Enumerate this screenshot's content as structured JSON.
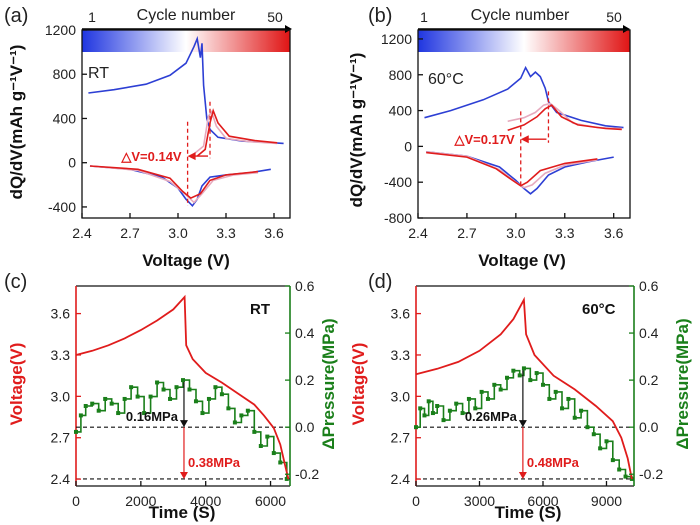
{
  "colors": {
    "red": "#e01c1c",
    "green": "#1a7f1a",
    "blue": "#2d3fd4",
    "dark": "#111111"
  },
  "chart_data": [
    {
      "panel": "(a)",
      "type": "line",
      "condition": "RT",
      "colorbar": {
        "label": "Cycle number",
        "min": "1",
        "max": "50"
      },
      "xlabel": "Voltage (V)",
      "ylabel": "dQ/dV(mAh g⁻¹V⁻¹)",
      "xlim": [
        2.4,
        3.7
      ],
      "ylim": [
        -500,
        1200
      ],
      "xticks": [
        "2.4",
        "2.7",
        "3.0",
        "3.3",
        "3.6"
      ],
      "yticks": [
        "-400",
        "0",
        "400",
        "800",
        "1200"
      ],
      "annotation": "△V=0.14V",
      "peaks": {
        "charge_cycle1_V": 3.06,
        "charge_cycle50_V": 3.2
      },
      "series": [
        {
          "cycle": 1,
          "charge": [
            [
              2.44,
              630
            ],
            [
              2.6,
              660
            ],
            [
              2.8,
              710
            ],
            [
              2.95,
              790
            ],
            [
              3.05,
              900
            ],
            [
              3.1,
              1050
            ],
            [
              3.12,
              1120
            ],
            [
              3.14,
              950
            ],
            [
              3.15,
              1080
            ],
            [
              3.16,
              700
            ],
            [
              3.18,
              400
            ],
            [
              3.2,
              300
            ],
            [
              3.25,
              230
            ],
            [
              3.4,
              195
            ],
            [
              3.6,
              180
            ],
            [
              3.66,
              175
            ]
          ],
          "discharge": [
            [
              2.45,
              -30
            ],
            [
              2.7,
              -60
            ],
            [
              2.9,
              -130
            ],
            [
              3.0,
              -230
            ],
            [
              3.05,
              -330
            ],
            [
              3.09,
              -390
            ],
            [
              3.12,
              -330
            ],
            [
              3.15,
              -210
            ],
            [
              3.2,
              -130
            ],
            [
              3.3,
              -110
            ],
            [
              3.45,
              -90
            ],
            [
              3.58,
              -60
            ]
          ]
        },
        {
          "cycle": 25,
          "charge": [
            [
              3.1,
              80
            ],
            [
              3.16,
              150
            ],
            [
              3.19,
              420
            ],
            [
              3.21,
              460
            ],
            [
              3.24,
              330
            ],
            [
              3.3,
              220
            ],
            [
              3.45,
              190
            ],
            [
              3.62,
              175
            ]
          ],
          "discharge": [
            [
              2.45,
              -30
            ],
            [
              2.75,
              -70
            ],
            [
              2.95,
              -170
            ],
            [
              3.05,
              -290
            ],
            [
              3.1,
              -360
            ],
            [
              3.15,
              -280
            ],
            [
              3.22,
              -160
            ],
            [
              3.35,
              -110
            ],
            [
              3.5,
              -90
            ]
          ]
        },
        {
          "cycle": 50,
          "charge": [
            [
              3.12,
              60
            ],
            [
              3.17,
              120
            ],
            [
              3.2,
              360
            ],
            [
              3.22,
              470
            ],
            [
              3.25,
              360
            ],
            [
              3.32,
              240
            ],
            [
              3.48,
              200
            ],
            [
              3.62,
              180
            ]
          ],
          "discharge": [
            [
              2.45,
              -30
            ],
            [
              2.75,
              -60
            ],
            [
              2.95,
              -140
            ],
            [
              3.03,
              -260
            ],
            [
              3.08,
              -320
            ],
            [
              3.14,
              -280
            ],
            [
              3.2,
              -160
            ],
            [
              3.3,
              -110
            ],
            [
              3.5,
              -80
            ]
          ]
        }
      ]
    },
    {
      "panel": "(b)",
      "type": "line",
      "condition": "60°C",
      "colorbar": {
        "label": "Cycle number",
        "min": "1",
        "max": "50"
      },
      "xlabel": "Voltage (V)",
      "ylabel": "dQ/dV(mAh g⁻¹V⁻¹)",
      "xlim": [
        2.4,
        3.7
      ],
      "ylim": [
        -800,
        1300
      ],
      "xticks": [
        "2.4",
        "2.7",
        "3.0",
        "3.3",
        "3.6"
      ],
      "yticks": [
        "-800",
        "-400",
        "0",
        "400",
        "800",
        "1200"
      ],
      "annotation": "△V=0.17V",
      "peaks": {
        "charge_cycle1_V": 3.03,
        "charge_cycle50_V": 3.2
      },
      "series": [
        {
          "cycle": 1,
          "charge": [
            [
              2.44,
              320
            ],
            [
              2.6,
              400
            ],
            [
              2.8,
              520
            ],
            [
              2.95,
              640
            ],
            [
              3.03,
              760
            ],
            [
              3.06,
              880
            ],
            [
              3.09,
              780
            ],
            [
              3.12,
              830
            ],
            [
              3.15,
              780
            ],
            [
              3.18,
              650
            ],
            [
              3.2,
              500
            ],
            [
              3.25,
              380
            ],
            [
              3.4,
              290
            ],
            [
              3.55,
              230
            ],
            [
              3.66,
              210
            ]
          ],
          "discharge": [
            [
              2.45,
              -60
            ],
            [
              2.7,
              -110
            ],
            [
              2.9,
              -230
            ],
            [
              3.0,
              -380
            ],
            [
              3.05,
              -470
            ],
            [
              3.09,
              -530
            ],
            [
              3.13,
              -470
            ],
            [
              3.2,
              -320
            ],
            [
              3.3,
              -230
            ],
            [
              3.45,
              -170
            ],
            [
              3.6,
              -120
            ]
          ]
        },
        {
          "cycle": 25,
          "charge": [
            [
              2.95,
              280
            ],
            [
              3.05,
              320
            ],
            [
              3.12,
              380
            ],
            [
              3.17,
              460
            ],
            [
              3.21,
              480
            ],
            [
              3.26,
              410
            ],
            [
              3.35,
              260
            ],
            [
              3.5,
              210
            ],
            [
              3.65,
              200
            ]
          ],
          "discharge": [
            [
              2.45,
              -60
            ],
            [
              2.7,
              -110
            ],
            [
              2.9,
              -260
            ],
            [
              3.0,
              -400
            ],
            [
              3.05,
              -460
            ],
            [
              3.1,
              -430
            ],
            [
              3.18,
              -300
            ],
            [
              3.3,
              -210
            ],
            [
              3.5,
              -150
            ]
          ]
        },
        {
          "cycle": 50,
          "charge": [
            [
              2.95,
              180
            ],
            [
              3.05,
              240
            ],
            [
              3.13,
              330
            ],
            [
              3.18,
              420
            ],
            [
              3.22,
              460
            ],
            [
              3.28,
              330
            ],
            [
              3.38,
              240
            ],
            [
              3.55,
              200
            ],
            [
              3.65,
              190
            ]
          ],
          "discharge": [
            [
              2.45,
              -70
            ],
            [
              2.7,
              -120
            ],
            [
              2.88,
              -250
            ],
            [
              2.98,
              -380
            ],
            [
              3.03,
              -440
            ],
            [
              3.07,
              -400
            ],
            [
              3.15,
              -270
            ],
            [
              3.3,
              -190
            ],
            [
              3.5,
              -140
            ]
          ]
        }
      ]
    },
    {
      "panel": "(c)",
      "type": "line",
      "condition": "RT",
      "xlabel": "Time (S)",
      "ylabel_left": "Voltage(V)",
      "ylabel_right": "ΔPressure(MPa)",
      "xlim": [
        0,
        6600
      ],
      "ylim_left": [
        2.35,
        3.8
      ],
      "ylim_right": [
        -0.25,
        0.6
      ],
      "xticks": [
        "0",
        "2000",
        "4000",
        "6000"
      ],
      "yticks_left": [
        "2.4",
        "2.7",
        "3.0",
        "3.3",
        "3.6"
      ],
      "yticks_right": [
        "-0.2",
        "0.0",
        "0.2",
        "0.4",
        "0.6"
      ],
      "ann_pressure": "0.16MPa",
      "ann_drop": "0.38MPa",
      "voltage": [
        [
          0,
          3.3
        ],
        [
          500,
          3.33
        ],
        [
          1000,
          3.37
        ],
        [
          1500,
          3.42
        ],
        [
          2000,
          3.48
        ],
        [
          2500,
          3.55
        ],
        [
          3000,
          3.63
        ],
        [
          3350,
          3.72
        ],
        [
          3400,
          3.37
        ],
        [
          3600,
          3.27
        ],
        [
          4000,
          3.17
        ],
        [
          4500,
          3.1
        ],
        [
          5000,
          3.02
        ],
        [
          5500,
          2.94
        ],
        [
          5800,
          2.86
        ],
        [
          6100,
          2.77
        ],
        [
          6300,
          2.65
        ],
        [
          6450,
          2.5
        ],
        [
          6550,
          2.4
        ]
      ],
      "pressure": [
        [
          0,
          -0.02
        ],
        [
          150,
          0.05
        ],
        [
          300,
          0.09
        ],
        [
          500,
          0.1
        ],
        [
          700,
          0.07
        ],
        [
          900,
          0.12
        ],
        [
          1100,
          0.1
        ],
        [
          1300,
          0.06
        ],
        [
          1500,
          0.12
        ],
        [
          1700,
          0.17
        ],
        [
          1900,
          0.13
        ],
        [
          2100,
          0.06
        ],
        [
          2300,
          0.13
        ],
        [
          2500,
          0.19
        ],
        [
          2700,
          0.16
        ],
        [
          2900,
          0.12
        ],
        [
          3100,
          0.17
        ],
        [
          3300,
          0.2
        ],
        [
          3500,
          0.16
        ],
        [
          3700,
          0.11
        ],
        [
          3900,
          0.06
        ],
        [
          4100,
          0.12
        ],
        [
          4300,
          0.17
        ],
        [
          4500,
          0.14
        ],
        [
          4700,
          0.08
        ],
        [
          4900,
          0.02
        ],
        [
          5100,
          0.05
        ],
        [
          5300,
          0.07
        ],
        [
          5500,
          -0.02
        ],
        [
          5700,
          -0.08
        ],
        [
          5900,
          -0.04
        ],
        [
          6100,
          -0.11
        ],
        [
          6300,
          -0.15
        ],
        [
          6500,
          -0.22
        ]
      ],
      "ref_levels": {
        "dash_upper_MPa": 0.0,
        "dash_lower_MPa": -0.22,
        "arrow_time_S": 3330
      }
    },
    {
      "panel": "(d)",
      "type": "line",
      "condition": "60°C",
      "xlabel": "Time (S)",
      "ylabel_left": "Voltage(V)",
      "ylabel_right": "ΔPressure(MPa)",
      "xlim": [
        0,
        10300
      ],
      "ylim_left": [
        2.35,
        3.8
      ],
      "ylim_right": [
        -0.25,
        0.6
      ],
      "xticks": [
        "0",
        "3000",
        "6000",
        "9000"
      ],
      "yticks_left": [
        "2.4",
        "2.7",
        "3.0",
        "3.3",
        "3.6"
      ],
      "yticks_right": [
        "-0.2",
        "0.0",
        "0.2",
        "0.4",
        "0.6"
      ],
      "ann_pressure": "0.26MPa",
      "ann_drop": "0.48MPa",
      "voltage": [
        [
          0,
          3.16
        ],
        [
          1000,
          3.2
        ],
        [
          2000,
          3.25
        ],
        [
          3000,
          3.33
        ],
        [
          4000,
          3.45
        ],
        [
          4600,
          3.56
        ],
        [
          5100,
          3.7
        ],
        [
          5200,
          3.45
        ],
        [
          5600,
          3.3
        ],
        [
          6500,
          3.15
        ],
        [
          7500,
          3.05
        ],
        [
          8500,
          2.93
        ],
        [
          9300,
          2.82
        ],
        [
          9700,
          2.7
        ],
        [
          10000,
          2.55
        ],
        [
          10200,
          2.4
        ]
      ],
      "pressure": [
        [
          0,
          0.0
        ],
        [
          200,
          0.08
        ],
        [
          400,
          0.05
        ],
        [
          600,
          0.11
        ],
        [
          800,
          0.06
        ],
        [
          1000,
          0.09
        ],
        [
          1300,
          0.03
        ],
        [
          1600,
          0.07
        ],
        [
          1900,
          0.1
        ],
        [
          2200,
          0.06
        ],
        [
          2500,
          0.12
        ],
        [
          2800,
          0.08
        ],
        [
          3100,
          0.15
        ],
        [
          3400,
          0.12
        ],
        [
          3700,
          0.18
        ],
        [
          4000,
          0.16
        ],
        [
          4300,
          0.21
        ],
        [
          4600,
          0.24
        ],
        [
          4900,
          0.22
        ],
        [
          5100,
          0.25
        ],
        [
          5400,
          0.2
        ],
        [
          5700,
          0.23
        ],
        [
          6000,
          0.18
        ],
        [
          6300,
          0.12
        ],
        [
          6600,
          0.15
        ],
        [
          6900,
          0.08
        ],
        [
          7200,
          0.12
        ],
        [
          7500,
          0.04
        ],
        [
          7800,
          0.07
        ],
        [
          8100,
          0.0
        ],
        [
          8400,
          -0.03
        ],
        [
          8700,
          -0.09
        ],
        [
          9000,
          -0.06
        ],
        [
          9300,
          -0.14
        ],
        [
          9600,
          -0.18
        ],
        [
          9900,
          -0.21
        ],
        [
          10200,
          -0.22
        ]
      ],
      "ref_levels": {
        "dash_upper_MPa": 0.0,
        "dash_lower_MPa": -0.22,
        "arrow_time_S": 5050
      }
    }
  ]
}
